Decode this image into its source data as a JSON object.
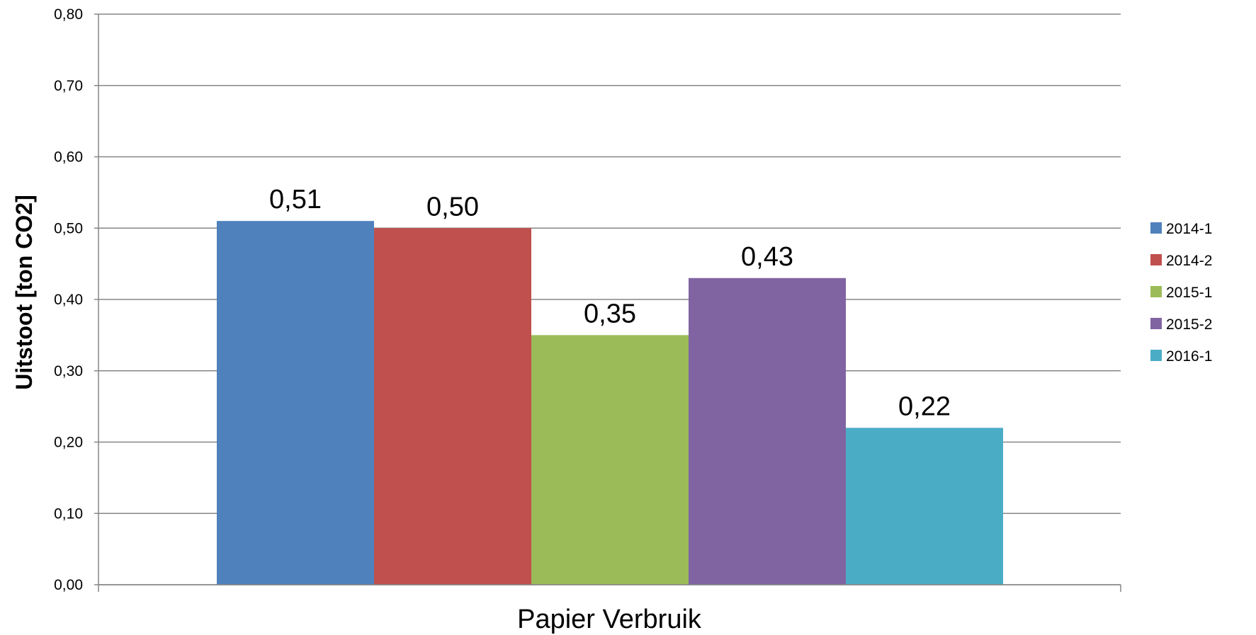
{
  "chart_data": {
    "type": "bar",
    "categories": [
      "Papier Verbruik"
    ],
    "series": [
      {
        "name": "2014-1",
        "values": [
          0.51
        ],
        "label": "0,51",
        "color": "#4F81BD"
      },
      {
        "name": "2014-2",
        "values": [
          0.5
        ],
        "label": "0,50",
        "color": "#C0504D"
      },
      {
        "name": "2015-1",
        "values": [
          0.35
        ],
        "label": "0,35",
        "color": "#9BBB59"
      },
      {
        "name": "2015-2",
        "values": [
          0.43
        ],
        "label": "0,43",
        "color": "#8064A2"
      },
      {
        "name": "2016-1",
        "values": [
          0.22
        ],
        "label": "0,22",
        "color": "#4BACC6"
      }
    ],
    "xlabel": "Papier Verbruik",
    "ylabel": "Uitstoot [ton CO2]",
    "ylim": [
      0,
      0.8
    ],
    "yticks": [
      "0,00",
      "0,10",
      "0,20",
      "0,30",
      "0,40",
      "0,50",
      "0,60",
      "0,70",
      "0,80"
    ],
    "grid": true,
    "legend_position": "right"
  }
}
